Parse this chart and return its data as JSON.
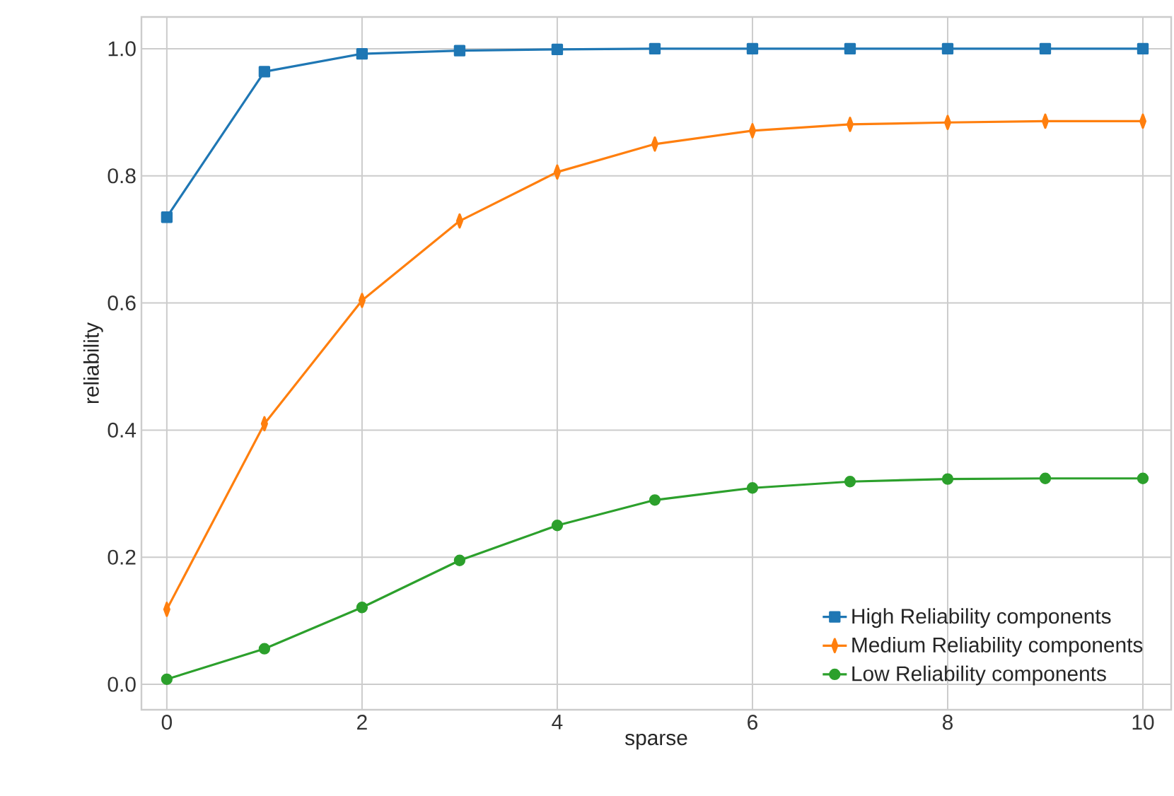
{
  "chart_data": {
    "type": "line",
    "xlabel": "sparse",
    "ylabel": "reliability",
    "x": [
      0,
      1,
      2,
      3,
      4,
      5,
      6,
      7,
      8,
      9,
      10
    ],
    "series": [
      {
        "name": "High Reliability components",
        "color": "#1f77b4",
        "marker": "square",
        "values": [
          0.735,
          0.964,
          0.992,
          0.997,
          0.999,
          1.0,
          1.0,
          1.0,
          1.0,
          1.0,
          1.0
        ]
      },
      {
        "name": "Medium Reliability components",
        "color": "#ff7f0e",
        "marker": "diamond",
        "values": [
          0.118,
          0.41,
          0.604,
          0.729,
          0.806,
          0.85,
          0.871,
          0.881,
          0.884,
          0.886,
          0.886
        ]
      },
      {
        "name": "Low Reliability components",
        "color": "#2ca02c",
        "marker": "circle",
        "values": [
          0.008,
          0.056,
          0.121,
          0.195,
          0.25,
          0.29,
          0.309,
          0.319,
          0.323,
          0.324,
          0.324
        ]
      }
    ],
    "xlim": [
      -0.26,
      10.29
    ],
    "ylim": [
      -0.04,
      1.05
    ],
    "xticks": [
      0,
      2,
      4,
      6,
      8,
      10
    ],
    "yticks": [
      {
        "value": 0,
        "label": "0.0"
      },
      {
        "value": 0.2,
        "label": "0.2"
      },
      {
        "value": 0.4,
        "label": "0.4"
      },
      {
        "value": 0.6,
        "label": "0.6"
      },
      {
        "value": 0.8,
        "label": "0.8"
      },
      {
        "value": 1.0,
        "label": "1.0"
      }
    ],
    "grid": true,
    "legend": "bottom right",
    "line_style": "solid"
  }
}
